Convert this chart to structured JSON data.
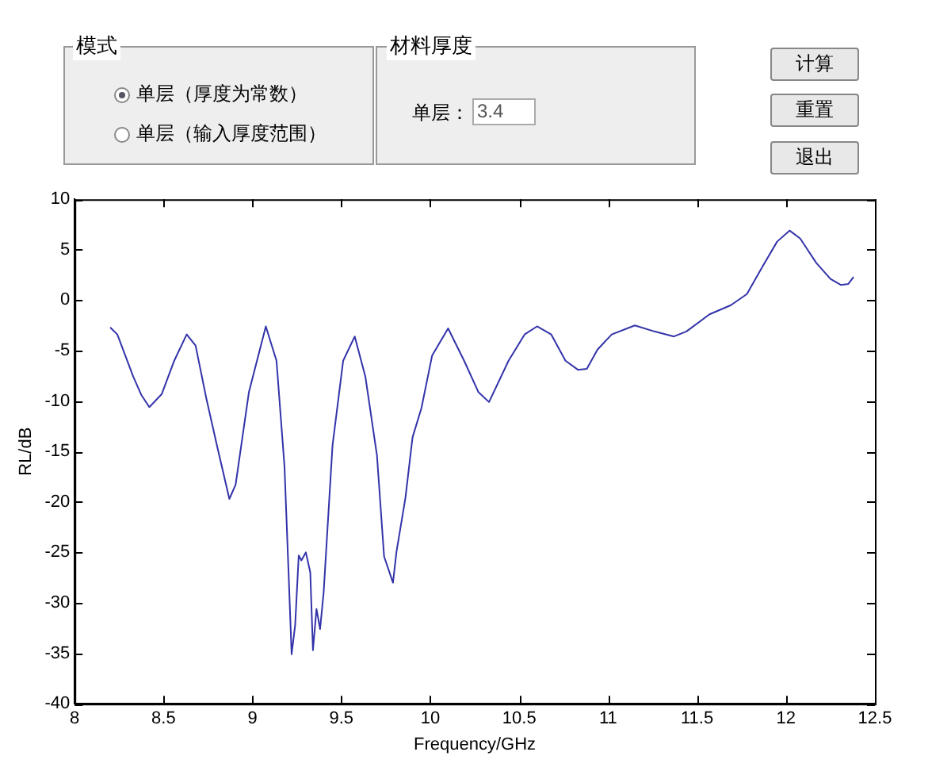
{
  "chart_data": {
    "type": "line",
    "xlabel": "Frequency/GHz",
    "ylabel": "RL/dB",
    "annotations": [
      "模式",
      "单层（厚度为常数）",
      "单层（输入厚度范围）",
      "材料厚度",
      "单层：",
      "3.4",
      "计算",
      "重置",
      "退出"
    ],
    "series": [
      {
        "color": "#3333aa",
        "x": [
          8.2,
          8.24,
          8.33,
          8.375,
          8.42,
          8.49,
          8.56,
          8.63,
          8.68,
          8.74,
          8.8,
          8.87,
          8.905,
          8.98,
          9.075,
          9.135,
          9.18,
          9.205,
          9.22,
          9.24,
          9.26,
          9.275,
          9.3,
          9.325,
          9.34,
          9.36,
          9.38,
          9.4,
          9.45,
          9.51,
          9.575,
          9.635,
          9.7,
          9.74,
          9.79,
          9.81,
          9.86,
          9.9,
          9.95,
          10.01,
          10.1,
          10.19,
          10.27,
          10.33,
          10.44,
          10.53,
          10.6,
          10.68,
          10.76,
          10.83,
          10.88,
          10.94,
          11.02,
          11.15,
          11.26,
          11.37,
          11.44,
          11.57,
          11.69,
          11.78,
          11.87,
          11.95,
          12.02,
          12.08,
          12.17,
          12.25,
          12.31,
          12.35,
          12.38
        ],
        "values": [
          -2.7,
          -3.4,
          -7.6,
          -9.4,
          -10.6,
          -9.3,
          -6.0,
          -3.4,
          -4.5,
          -9.7,
          -14.4,
          -19.7,
          -18.3,
          -9.1,
          -2.6,
          -6.0,
          -16.5,
          -28,
          -35.1,
          -32.2,
          -25.3,
          -25.8,
          -25.0,
          -27,
          -34.7,
          -30.6,
          -32.6,
          -29.0,
          -14.4,
          -6.0,
          -3.6,
          -7.6,
          -15.4,
          -25.4,
          -28.0,
          -24.9,
          -19.6,
          -13.6,
          -10.7,
          -5.5,
          -2.8,
          -6.0,
          -9.1,
          -10.1,
          -6.0,
          -3.4,
          -2.6,
          -3.4,
          -6.0,
          -6.9,
          -6.8,
          -4.9,
          -3.4,
          -2.5,
          -3.1,
          -3.6,
          -3.1,
          -1.4,
          -0.5,
          0.6,
          3.4,
          5.8,
          6.9,
          6.1,
          3.7,
          2.1,
          1.5,
          1.6,
          2.3
        ]
      }
    ],
    "xlim": [
      8,
      12.5
    ],
    "xticks": [
      8,
      8.5,
      9,
      9.5,
      10,
      10.5,
      11,
      11.5,
      12,
      12.5
    ],
    "ylim": [
      -40,
      10
    ],
    "yticks": [
      -40,
      -35,
      -30,
      -25,
      -20,
      -15,
      -10,
      -5,
      0,
      5,
      10
    ],
    "grid": false,
    "legend": false,
    "marker": "none",
    "line_style": "solid"
  }
}
